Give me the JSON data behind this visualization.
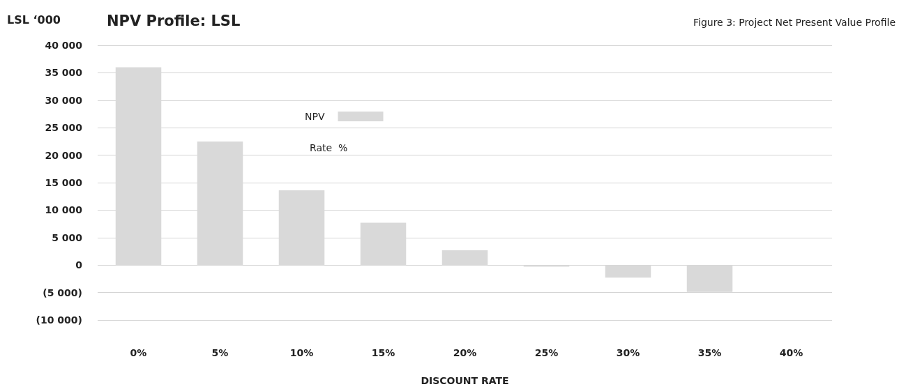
{
  "chart_data": {
    "type": "bar",
    "title": "NPV Profile: LSL",
    "subtitle": "Figure 3: Project Net Present Value Profile",
    "ylabel": "LSL ‘000",
    "xlabel": "DISCOUNT RATE",
    "categories": [
      "0%",
      "5%",
      "10%",
      "15%",
      "20%",
      "25%",
      "30%",
      "35%",
      "40%"
    ],
    "series": [
      {
        "name": "NPV",
        "color": "#d9d9d9",
        "values": [
          36000,
          22500,
          13600,
          7700,
          2700,
          -300,
          -2300,
          -4900,
          null
        ]
      }
    ],
    "ylim": [
      -10000,
      40000
    ],
    "yticks": [
      {
        "value": -10000,
        "label": "(10 000)"
      },
      {
        "value": -5000,
        "label": "(5 000)"
      },
      0,
      {
        "value": 5000,
        "label": "5 000"
      },
      {
        "value": 10000,
        "label": "10 000"
      },
      {
        "value": 15000,
        "label": "15 000"
      },
      {
        "value": 20000,
        "label": "20 000"
      },
      {
        "value": 25000,
        "label": "25 000"
      },
      {
        "value": 30000,
        "label": "30 000"
      },
      {
        "value": 35000,
        "label": "35 000"
      },
      {
        "value": 40000,
        "label": "40 000"
      }
    ],
    "grid": "y",
    "legend": "top left",
    "annotations": [
      "Rate  %"
    ]
  }
}
